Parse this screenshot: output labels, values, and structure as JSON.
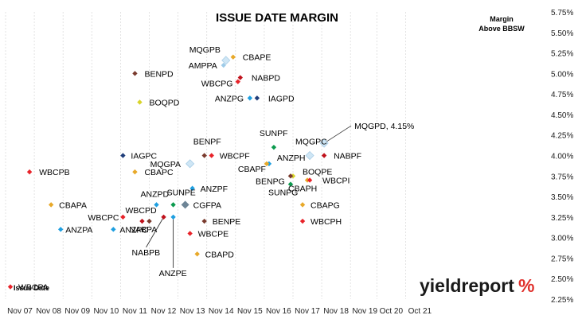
{
  "chart_data": {
    "type": "scatter",
    "title": "ISSUE DATE MARGIN",
    "legend_note": [
      "Margin",
      "Above BBSW"
    ],
    "x_ticks": [
      "Nov 07",
      "Nov 08",
      "Nov 09",
      "Nov 10",
      "Nov 11",
      "Nov 12",
      "Nov 13",
      "Nov 14",
      "Nov 15",
      "Nov 16",
      "Nov 17",
      "Nov 18",
      "Nov 19",
      "Oct 20",
      "Oct 21"
    ],
    "y_ticks": [
      "5.75%",
      "5.50%",
      "5.25%",
      "5.00%",
      "4.75%",
      "4.50%",
      "4.25%",
      "4.00%",
      "3.75%",
      "3.50%",
      "3.25%",
      "3.00%",
      "2.75%",
      "2.50%",
      "2.25%"
    ],
    "ylim": [
      2.25,
      5.75
    ],
    "points": [
      {
        "label": "MQGPB",
        "x": "2015-07",
        "y": 5.16,
        "color": "#cfe6f5"
      },
      {
        "label": "CBAPE",
        "x": "2015-10",
        "y": 5.2,
        "color": "#e8a92a"
      },
      {
        "label": "AMPPA",
        "x": "2015-06",
        "y": 5.1,
        "color": "#9ecbe8"
      },
      {
        "label": "BENPD",
        "x": "2012-05",
        "y": 5.0,
        "color": "#7a3b2e"
      },
      {
        "label": "NABPD",
        "x": "2016-01",
        "y": 4.95,
        "color": "#c0121c"
      },
      {
        "label": "WBCPG",
        "x": "2015-12",
        "y": 4.9,
        "color": "#e8232a"
      },
      {
        "label": "ANZPG",
        "x": "2016-05",
        "y": 4.7,
        "color": "#1f9fe0"
      },
      {
        "label": "IAGPD",
        "x": "2016-08",
        "y": 4.7,
        "color": "#1f3d7a"
      },
      {
        "label": "BOQPD",
        "x": "2012-07",
        "y": 4.65,
        "color": "#d8d42a"
      },
      {
        "label": "SUNPF",
        "x": "2017-03",
        "y": 4.1,
        "color": "#0c9a4e"
      },
      {
        "label": "MQGPD, 4.15%",
        "x": "2018-12",
        "y": 4.15,
        "color": "#cfe6f5"
      },
      {
        "label": "BENPF",
        "x": "2014-10",
        "y": 4.0,
        "color": "#7a3b2e"
      },
      {
        "label": "WBCPF",
        "x": "2015-01",
        "y": 4.0,
        "color": "#e8232a"
      },
      {
        "label": "IAGPC",
        "x": "2011-12",
        "y": 4.0,
        "color": "#1f3d7a"
      },
      {
        "label": "MQGPC",
        "x": "2018-06",
        "y": 4.0,
        "color": "#cfe6f5"
      },
      {
        "label": "NABPF",
        "x": "2018-12",
        "y": 4.0,
        "color": "#c0121c"
      },
      {
        "label": "MQGPA",
        "x": "2014-04",
        "y": 3.9,
        "color": "#cfe6f5"
      },
      {
        "label": "ANZPH",
        "x": "2017-01",
        "y": 3.9,
        "color": "#1f9fe0"
      },
      {
        "label": "CBAPC",
        "x": "2012-05",
        "y": 3.8,
        "color": "#e8a92a"
      },
      {
        "label": "CBAPF",
        "x": "2016-12",
        "y": 3.9,
        "color": "#e8a92a"
      },
      {
        "label": "WBCPB",
        "x": "2008-09",
        "y": 3.8,
        "color": "#e8232a"
      },
      {
        "label": "BOQPE",
        "x": "2017-11",
        "y": 3.75,
        "color": "#d8d42a"
      },
      {
        "label": "BENPG",
        "x": "2017-10",
        "y": 3.75,
        "color": "#7a3b2e"
      },
      {
        "label": "CBAPH",
        "x": "2018-05",
        "y": 3.7,
        "color": "#e8a92a"
      },
      {
        "label": "WBCPI",
        "x": "2018-06",
        "y": 3.7,
        "color": "#e8232a"
      },
      {
        "label": "SUNPG",
        "x": "2017-10",
        "y": 3.65,
        "color": "#0c9a4e"
      },
      {
        "label": "ANZPF",
        "x": "2014-05",
        "y": 3.6,
        "color": "#1f9fe0"
      },
      {
        "label": "ANZPD",
        "x": "2013-02",
        "y": 3.4,
        "color": "#1f9fe0"
      },
      {
        "label": "SUNPE",
        "x": "2013-09",
        "y": 3.4,
        "color": "#0c9a4e"
      },
      {
        "label": "CGFPA",
        "x": "2014-02",
        "y": 3.4,
        "color": "#6d8596"
      },
      {
        "label": "CBAPA",
        "x": "2009-06",
        "y": 3.4,
        "color": "#e8a92a"
      },
      {
        "label": "CBAPG",
        "x": "2018-03",
        "y": 3.4,
        "color": "#e8a92a"
      },
      {
        "label": "WBCPC",
        "x": "2011-12",
        "y": 3.25,
        "color": "#e8232a"
      },
      {
        "label": "WBCPD",
        "x": "2012-11",
        "y": 3.2,
        "color": "#7a3b2e"
      },
      {
        "label": "NABPB",
        "x": "2013-05",
        "y": 3.25,
        "color": "#c0121c"
      },
      {
        "label": "ANZPE",
        "x": "2013-09",
        "y": 3.25,
        "color": "#1f9fe0"
      },
      {
        "label": "BENPE",
        "x": "2014-10",
        "y": 3.2,
        "color": "#7a3b2e"
      },
      {
        "label": "NABPA",
        "x": "2012-08",
        "y": 3.2,
        "color": "#c0121c"
      },
      {
        "label": "WBCPH",
        "x": "2018-03",
        "y": 3.2,
        "color": "#e8232a"
      },
      {
        "label": "ANZPA",
        "x": "2009-10",
        "y": 3.1,
        "color": "#1f9fe0"
      },
      {
        "label": "ANZPC",
        "x": "2011-08",
        "y": 3.1,
        "color": "#1f9fe0"
      },
      {
        "label": "WBCPE",
        "x": "2014-04",
        "y": 3.05,
        "color": "#e8232a"
      },
      {
        "label": "CBAPD",
        "x": "2014-07",
        "y": 2.8,
        "color": "#e8a92a"
      },
      {
        "label": "WBCPA",
        "x": "2008-01",
        "y": 2.4,
        "color": "#e8232a"
      }
    ],
    "axis_note": "Issue Date",
    "watermark": [
      "yieldreport",
      "%"
    ]
  }
}
